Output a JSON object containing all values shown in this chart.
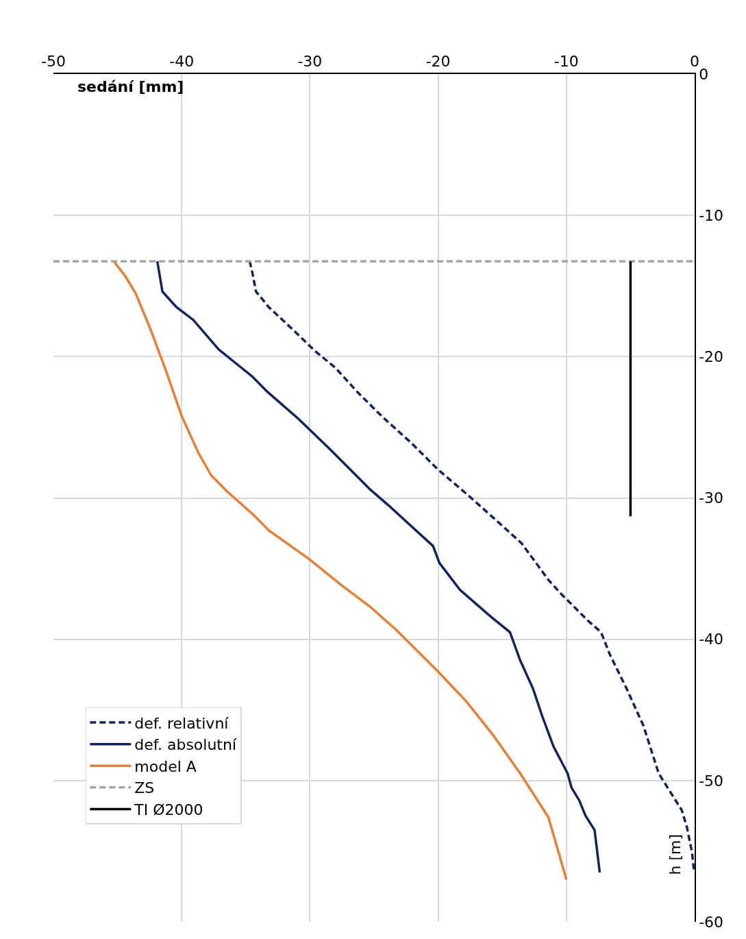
{
  "chart_data": {
    "type": "line",
    "xlabel": "sedání [mm]",
    "ylabel": "h [m]",
    "xlim": [
      -50,
      0
    ],
    "xticks": [
      -50,
      -40,
      -30,
      -20,
      -10,
      0
    ],
    "ylim": [
      -60,
      0
    ],
    "yticks": [
      0,
      -10,
      -20,
      -30,
      -40,
      -50,
      -60
    ],
    "grid": true,
    "legend": "bottom left",
    "marker": "none",
    "series": [
      {
        "name": "def. relativní",
        "color": "#0e2463",
        "line_style": "dashed",
        "x": [
          -34.7,
          -34.5,
          -34.2,
          -33.2,
          -31.2,
          -29.6,
          -28.0,
          -26.3,
          -24.3,
          -22.1,
          -20.0,
          -17.8,
          -15.7,
          -13.5,
          -11.4,
          -10.4,
          -8.3,
          -7.3,
          -6.6,
          -5.3,
          -4.0,
          -2.8,
          -1.0,
          -0.6,
          -0.2,
          -0.05
        ],
        "values": [
          -13.25,
          -14,
          -15.4,
          -16.5,
          -18.2,
          -19.6,
          -20.8,
          -22.5,
          -24.3,
          -26.1,
          -28.0,
          -29.7,
          -31.4,
          -33.2,
          -35.8,
          -36.8,
          -38.7,
          -39.5,
          -41.1,
          -43.5,
          -46.1,
          -49.5,
          -52.1,
          -53.3,
          -55.1,
          -56.4
        ]
      },
      {
        "name": "def. absolutní",
        "color": "#0e2463",
        "line_style": "solid",
        "x": [
          -41.9,
          -41.5,
          -40.4,
          -39.1,
          -37.1,
          -34.5,
          -33.3,
          -30.9,
          -28.5,
          -25.3,
          -23.9,
          -20.4,
          -19.9,
          -18.3,
          -15.9,
          -14.4,
          -14.0,
          -13.6,
          -12.6,
          -11.9,
          -11.0,
          -9.9,
          -9.6,
          -9.0,
          -8.5,
          -7.8,
          -7.6,
          -7.4
        ],
        "values": [
          -13.25,
          -15.4,
          -16.5,
          -17.4,
          -19.5,
          -21.4,
          -22.5,
          -24.4,
          -26.5,
          -29.4,
          -30.5,
          -33.4,
          -34.6,
          -36.5,
          -38.4,
          -39.5,
          -40.5,
          -41.5,
          -43.5,
          -45.4,
          -47.6,
          -49.5,
          -50.5,
          -51.4,
          -52.5,
          -53.5,
          -55.0,
          -56.5
        ]
      },
      {
        "name": "model A",
        "color": "#ed7d31",
        "line_style": "solid",
        "x": [
          -45.3,
          -44.4,
          -43.6,
          -42.5,
          -41.3,
          -40.0,
          -38.7,
          -37.7,
          -36.5,
          -34.4,
          -33.2,
          -30.1,
          -27.5,
          -25.3,
          -23.2,
          -20.0,
          -17.8,
          -15.7,
          -13.6,
          -11.4,
          -10.0
        ],
        "values": [
          -13.25,
          -14.3,
          -15.5,
          -17.9,
          -20.8,
          -24.2,
          -26.8,
          -28.4,
          -29.5,
          -31.2,
          -32.3,
          -34.3,
          -36.2,
          -37.7,
          -39.4,
          -42.3,
          -44.4,
          -46.8,
          -49.5,
          -52.6,
          -57.0
        ]
      },
      {
        "name": "ZS",
        "color": "#a5a5a5",
        "line_style": "dashed",
        "x": [
          -50,
          0
        ],
        "values": [
          -13.25,
          -13.25
        ]
      },
      {
        "name": "TI Ø2000",
        "color": "#000000",
        "line_style": "solid",
        "x": [
          -5,
          -5
        ],
        "values": [
          -13.25,
          -31.3
        ]
      }
    ]
  }
}
